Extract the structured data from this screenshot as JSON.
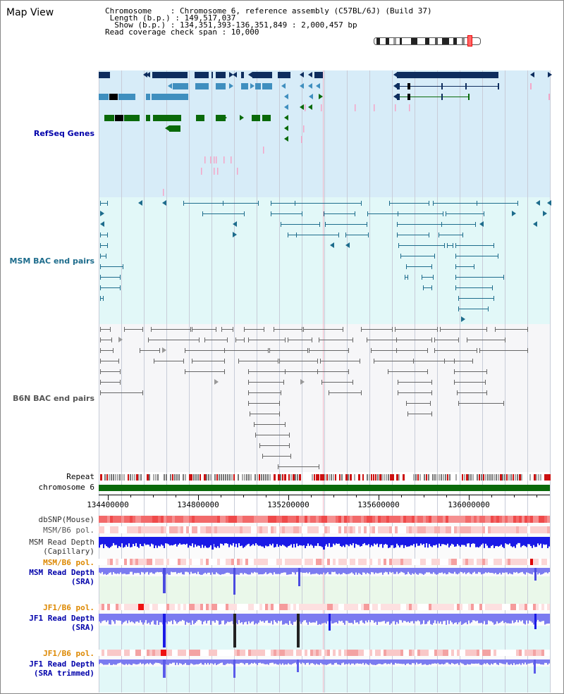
{
  "title": "Map View",
  "info": {
    "chromosome_line": "Chromosome    : Chromosome 6, reference assembly (C57BL/6J) (Build 37)",
    "length_line": " Length (b.p.) : 149,517,037",
    "show_line": "  Show (b.p.) : 134,351,393-136,351,849 : 2,000,457 bp",
    "coverage_line": "Read coverage check span : 10,000"
  },
  "tracks": {
    "refseq": "RefSeq Genes",
    "msm_bac": "MSM BAC end pairs",
    "b6n_bac": "B6N BAC end pairs",
    "repeat": "Repeat",
    "chromosome": "chromosome 6",
    "dbsnp": "dbSNP(Mouse)",
    "msm_b6_pol_1": "MSM/B6 pol.",
    "msm_depth_cap_1": "MSM Read Depth",
    "msm_depth_cap_2": "(Capillary)",
    "msm_b6_pol_2": "MSM/B6 pol.",
    "msm_depth_sra_1": "MSM Read Depth",
    "msm_depth_sra_2": "(SRA)",
    "jf1_b6_pol_1": "JF1/B6 pol.",
    "jf1_depth_sra_1": "JF1 Read Depth",
    "jf1_depth_sra_2": "(SRA)",
    "jf1_b6_pol_2": "JF1/B6 pol.",
    "jf1_depth_trim_1": "JF1 Read Depth",
    "jf1_depth_trim_2": "(SRA trimmed)"
  },
  "axis": {
    "ticks": [
      "134400000",
      "134800000",
      "135200000",
      "135600000",
      "136000000"
    ]
  },
  "colors": {
    "refseq_bg": "#d7ecf8",
    "msm_bg": "#e2f8f8",
    "b6n_bg": "#f6f6f8",
    "navy": "#0e2d5e",
    "steel": "#3f8fbf",
    "green": "#0a6a0a",
    "teal": "#1d6c8c",
    "grey": "#666666",
    "label_blue": "#0000aa",
    "label_teal": "#1d6c8c",
    "label_grey": "#555555",
    "label_orange": "#dd8800",
    "depth_blue": "#1a1ae6",
    "depth_purple": "#7b7bf0"
  }
}
